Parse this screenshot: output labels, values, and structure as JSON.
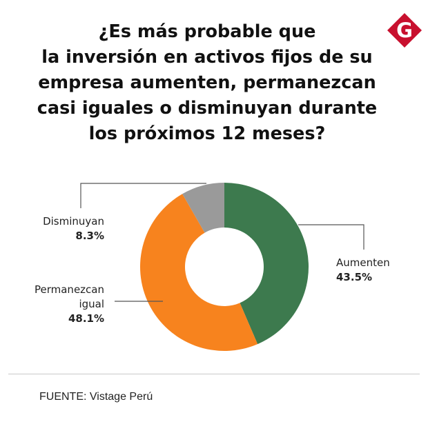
{
  "title_lines": [
    "¿Es más probable que",
    "la inversión en activos fijos de su",
    "empresa aumenten, permanezcan",
    "casi iguales o disminuyan durante",
    "los próximos 12 meses?"
  ],
  "logo": {
    "letter": "G",
    "color": "#c8102e"
  },
  "chart_data": {
    "type": "pie",
    "variant": "donut",
    "title": "¿Es más probable que la inversión en activos fijos de su empresa aumenten, permanezcan casi iguales o disminuyan durante los próximos 12 meses?",
    "slices": [
      {
        "label": "Aumenten",
        "value": 43.5,
        "value_label": "43.5%",
        "color": "#3d7a4e"
      },
      {
        "label": "Permanezcan igual",
        "label_lines": [
          "Permanezcan",
          "igual"
        ],
        "value": 48.1,
        "value_label": "48.1%",
        "color": "#f7831e"
      },
      {
        "label": "Disminuyan",
        "value": 8.3,
        "value_label": "8.3%",
        "color": "#9a9a9a"
      }
    ]
  },
  "source": "FUENTE: Vistage Perú"
}
